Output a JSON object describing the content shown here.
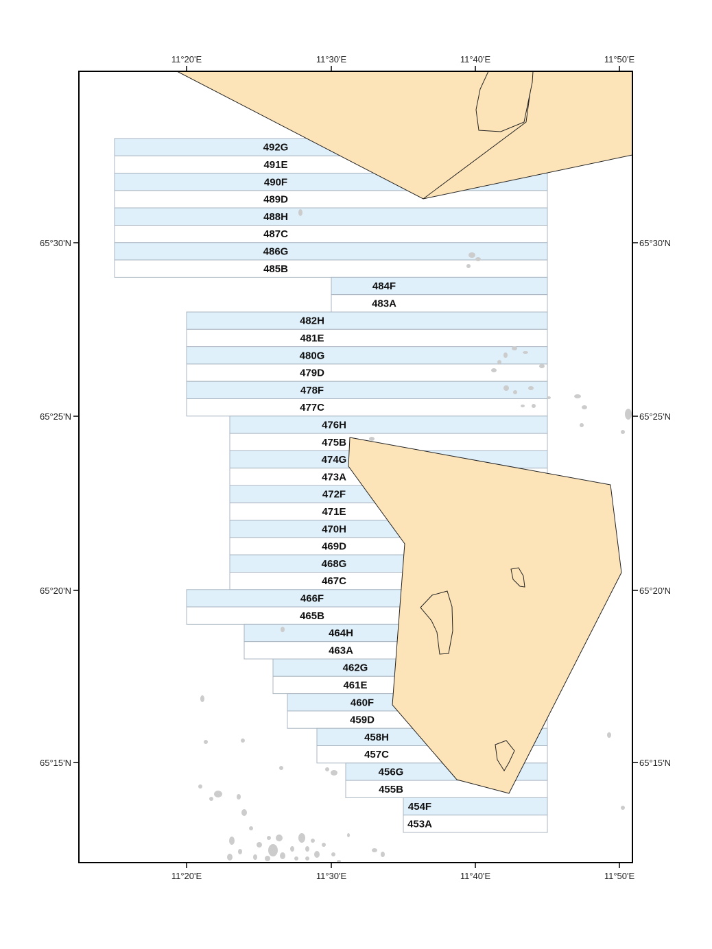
{
  "map": {
    "lon_ticks": [
      "11°20'E",
      "11°30'E",
      "11°40'E",
      "11°50'E"
    ],
    "lat_ticks": [
      "65°30'N",
      "65°25'N",
      "65°20'N",
      "65°15'N"
    ],
    "colors": {
      "land": "#fde4b8",
      "block_shaded": "#dff0fb",
      "block_plain": "#ffffff",
      "block_border": "#a8b4c0",
      "islets": "#cccccc",
      "frame": "#000000"
    },
    "blocks": [
      {
        "label": "492G",
        "shaded": true
      },
      {
        "label": "491E",
        "shaded": false
      },
      {
        "label": "490F",
        "shaded": true
      },
      {
        "label": "489D",
        "shaded": false
      },
      {
        "label": "488H",
        "shaded": true
      },
      {
        "label": "487C",
        "shaded": false
      },
      {
        "label": "486G",
        "shaded": true
      },
      {
        "label": "485B",
        "shaded": false
      },
      {
        "label": "484F",
        "shaded": true
      },
      {
        "label": "483A",
        "shaded": false
      },
      {
        "label": "482H",
        "shaded": true
      },
      {
        "label": "481E",
        "shaded": false
      },
      {
        "label": "480G",
        "shaded": true
      },
      {
        "label": "479D",
        "shaded": false
      },
      {
        "label": "478F",
        "shaded": true
      },
      {
        "label": "477C",
        "shaded": false
      },
      {
        "label": "476H",
        "shaded": true
      },
      {
        "label": "475B",
        "shaded": false
      },
      {
        "label": "474G",
        "shaded": true
      },
      {
        "label": "473A",
        "shaded": false
      },
      {
        "label": "472F",
        "shaded": true
      },
      {
        "label": "471E",
        "shaded": false
      },
      {
        "label": "470H",
        "shaded": true
      },
      {
        "label": "469D",
        "shaded": false
      },
      {
        "label": "468G",
        "shaded": true
      },
      {
        "label": "467C",
        "shaded": false
      },
      {
        "label": "466F",
        "shaded": true
      },
      {
        "label": "465B",
        "shaded": false
      },
      {
        "label": "464H",
        "shaded": true
      },
      {
        "label": "463A",
        "shaded": false
      },
      {
        "label": "462G",
        "shaded": true
      },
      {
        "label": "461E",
        "shaded": false
      },
      {
        "label": "460F",
        "shaded": true
      },
      {
        "label": "459D",
        "shaded": false
      },
      {
        "label": "458H",
        "shaded": true
      },
      {
        "label": "457C",
        "shaded": false
      },
      {
        "label": "456G",
        "shaded": true
      },
      {
        "label": "455B",
        "shaded": false
      },
      {
        "label": "454F",
        "shaded": true
      },
      {
        "label": "453A",
        "shaded": false
      }
    ]
  }
}
